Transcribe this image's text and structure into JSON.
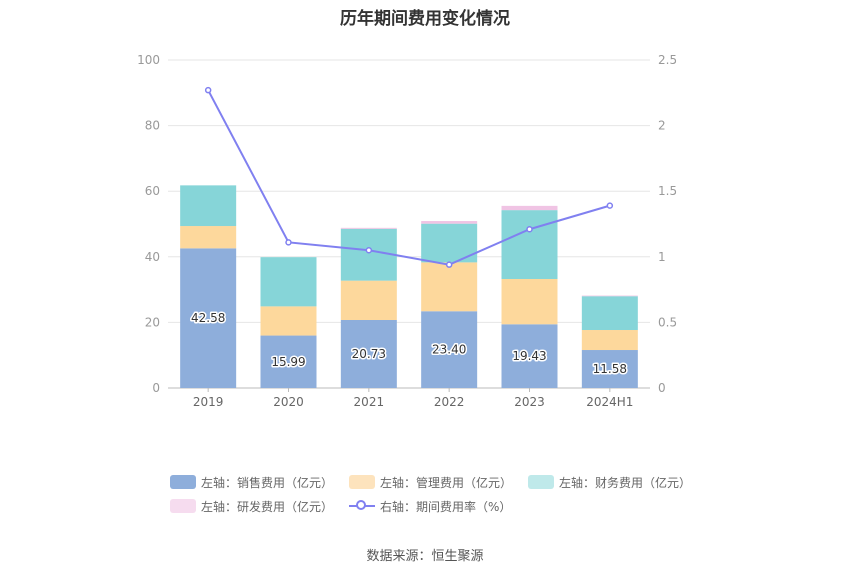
{
  "chart_data": {
    "type": "bar",
    "stacked": true,
    "title": "历年期间费用变化情况",
    "categories": [
      "2019",
      "2020",
      "2021",
      "2022",
      "2023",
      "2024H1"
    ],
    "y_left": {
      "ylim": [
        0,
        100
      ],
      "ticks": [
        0,
        20,
        40,
        60,
        80,
        100
      ]
    },
    "y_right": {
      "ylim": [
        0,
        2.5
      ],
      "ticks": [
        "0",
        "0.5",
        "1",
        "1.5",
        "2",
        "2.5"
      ]
    },
    "series": [
      {
        "name": "左轴：销售费用（亿元）",
        "axis": "left",
        "type": "bar",
        "color": "#8eaedb",
        "values": [
          42.58,
          15.99,
          20.73,
          23.4,
          19.43,
          11.58
        ],
        "labels": [
          "42.58",
          "15.99",
          "20.73",
          "23.40",
          "19.43",
          "11.58"
        ]
      },
      {
        "name": "左轴：管理费用（亿元）",
        "axis": "left",
        "type": "bar",
        "color": "#fdd89c",
        "values": [
          6.8,
          8.9,
          12.0,
          14.9,
          13.8,
          6.1
        ]
      },
      {
        "name": "左轴：财务费用（亿元）",
        "axis": "left",
        "type": "bar",
        "color": "#86d5d8",
        "values": [
          12.4,
          15.0,
          15.8,
          11.8,
          21.0,
          10.3
        ]
      },
      {
        "name": "左轴：研发费用（亿元）",
        "axis": "left",
        "type": "bar",
        "color": "#f0c4e4",
        "values": [
          0.0,
          0.0,
          0.3,
          0.8,
          1.3,
          0.2
        ]
      },
      {
        "name": "右轴：期间费用率（%）",
        "axis": "right",
        "type": "line",
        "color": "#8080f0",
        "values": [
          2.27,
          1.11,
          1.05,
          0.94,
          1.21,
          1.39
        ]
      }
    ],
    "legend_position": "bottom"
  },
  "legend": [
    {
      "label": "左轴：销售费用（亿元）",
      "color": "#8eaedb",
      "kind": "box"
    },
    {
      "label": "左轴：管理费用（亿元）",
      "color": "#fdd89c",
      "kind": "box"
    },
    {
      "label": "左轴：财务费用（亿元）",
      "color": "#86d5d8",
      "kind": "box"
    },
    {
      "label": "左轴：研发费用（亿元）",
      "color": "#f0c4e4",
      "kind": "box"
    },
    {
      "label": "右轴：期间费用率（%）",
      "color": "#8080f0",
      "kind": "line"
    }
  ],
  "source": "数据来源：恒生聚源"
}
